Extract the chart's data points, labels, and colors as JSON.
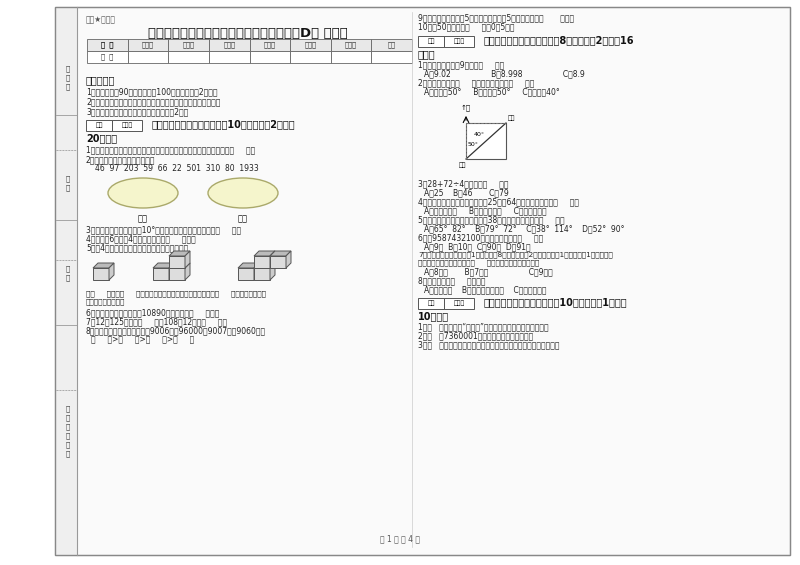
{
  "title": "上海教育版四年级数学下学期开学考试试题D卷 附答案",
  "subtitle_label": "趣题★应用题",
  "bg_color": "#ffffff",
  "table_headers": [
    "题  号",
    "填空题",
    "选择题",
    "判断题",
    "计算题",
    "综合题",
    "应用题",
    "总分"
  ],
  "table_row": [
    "得  分",
    "",
    "",
    "",
    "",
    "",
    "",
    ""
  ],
  "instructions_title": "考试须知：",
  "instructions": [
    "1．考试时间：90分钟，满分为100分（含卷面分2分）。",
    "2．请首先按要求在试卷的指定位置填写您的姓名、班级、学号。",
    "3．不要在试卷上乱写乱画，卷面不整洁扣2分。"
  ],
  "section1_title": "一、用心思考，正确填空（共10小题，每题2分，共",
  "section1_points": "20分）。",
  "q1_text": "1．学校的电动移门上有许多平行四边形的结构，这是因为平行四边形（     ）。",
  "q2_text": "2．把下列各数填入相应的圈里：",
  "q2_numbers": "46  97  203  59  66  22  501  310  80  1933",
  "odd_label": "奇数",
  "even_label": "偶数",
  "q3_text": "3．等腰三角形中，底角是10°，则这个三角形的一个底角是（     ）。",
  "q4_text": "4．一本书6元，买4本这样的书需要（     ）元。",
  "q5_text": "5．用4个同样大的正方体分割摆成下面的形状：",
  "q5_line1": "从（     ）面和（     ）面看，这三个物体的形状完全相同；从（     ）面看，这三个物",
  "q5_line2": "体的形状各不相同。",
  "q6_text": "6．某足球场可以容纳观众10890人，大约是（     ）人。",
  "q7_text": "7．12个125的和是（     ），108的12倍是（     ）。",
  "q8_text": "8．把下面各数从大到小排列：9006万，96000，9007万，9060万。",
  "q8_order": "（     ）>（     ）>（     ）>（     ）",
  "right_q9": "9．把三角形向右平移5格后，再向下平移5格，仍是一个（       ）形。",
  "right_q10": "10．在50后面添上（     ）个0是5万。",
  "section2_title": "二、反复比较，慎重选择（共8小题，每题2分，共16",
  "section2_points": "分）。",
  "r1_text": "1．下面的数最接近9的数是（     ）。",
  "r1_options": "A．9.02                 B．8.998                 C．8.9",
  "r2_text": "2．小强看小林在（     ），小林看小强在（     ）。",
  "r2_options": "A．北偏东50°     B．东偏北50°     C．西偏南40°",
  "r3_text": "3．28+72÷4的结果是（     ）。",
  "r3_options": "A．25    B．46       C．79",
  "r4_text": "4．一个三角形的两个内角分别是25度、64度，这个三角形是（     ）。",
  "r4_options": "A．锐角三角形     B．直角三角形     C．钝角三角形",
  "r5_text": "5．在一个三角形中，有一个角是38度，另两个角可能是（     ）。",
  "r5_options": "A．65°  82°    B．79°  72°    C．38°  114°    D．52°  90°",
  "r6_text": "6．把9587432100四舍五入到亿位是（     ）。",
  "r6_options": "A．9亿  B．10亿  C．90亿  D．91亿",
  "r7_line1": "7．小明给客人沏茶，接水1分钟，烧水8分钟，洗茶杯2分钟，拿茶叶1分钟，泡茶1分钟，小明",
  "r7_line2": "合理安排以上事情，最少要（     ）几分钟使客人尽快喝茶。",
  "r7_options": "A．8分钟       B．7分钟                 C．9分钟",
  "r8_text": "8．角的大小与（     ）有关。",
  "r8_options": "A．边的长短    B．两边叉开的大小    C．所在的位置",
  "section3_title": "三、仔细掂量，正确判断（共10小题，每题1分，共",
  "section3_points": "10分）。",
  "j1": "1．（   ）盖房子时“人字梁”的结构利用了三角形的稳定性。",
  "j2": "2．（   ）7360001读作七千三百零六万零一。",
  "j3": "3．（   ）知道三角形一个角的度数就可以判断它是什么三角形了。",
  "page_text": "第 1 页 共 4 页"
}
